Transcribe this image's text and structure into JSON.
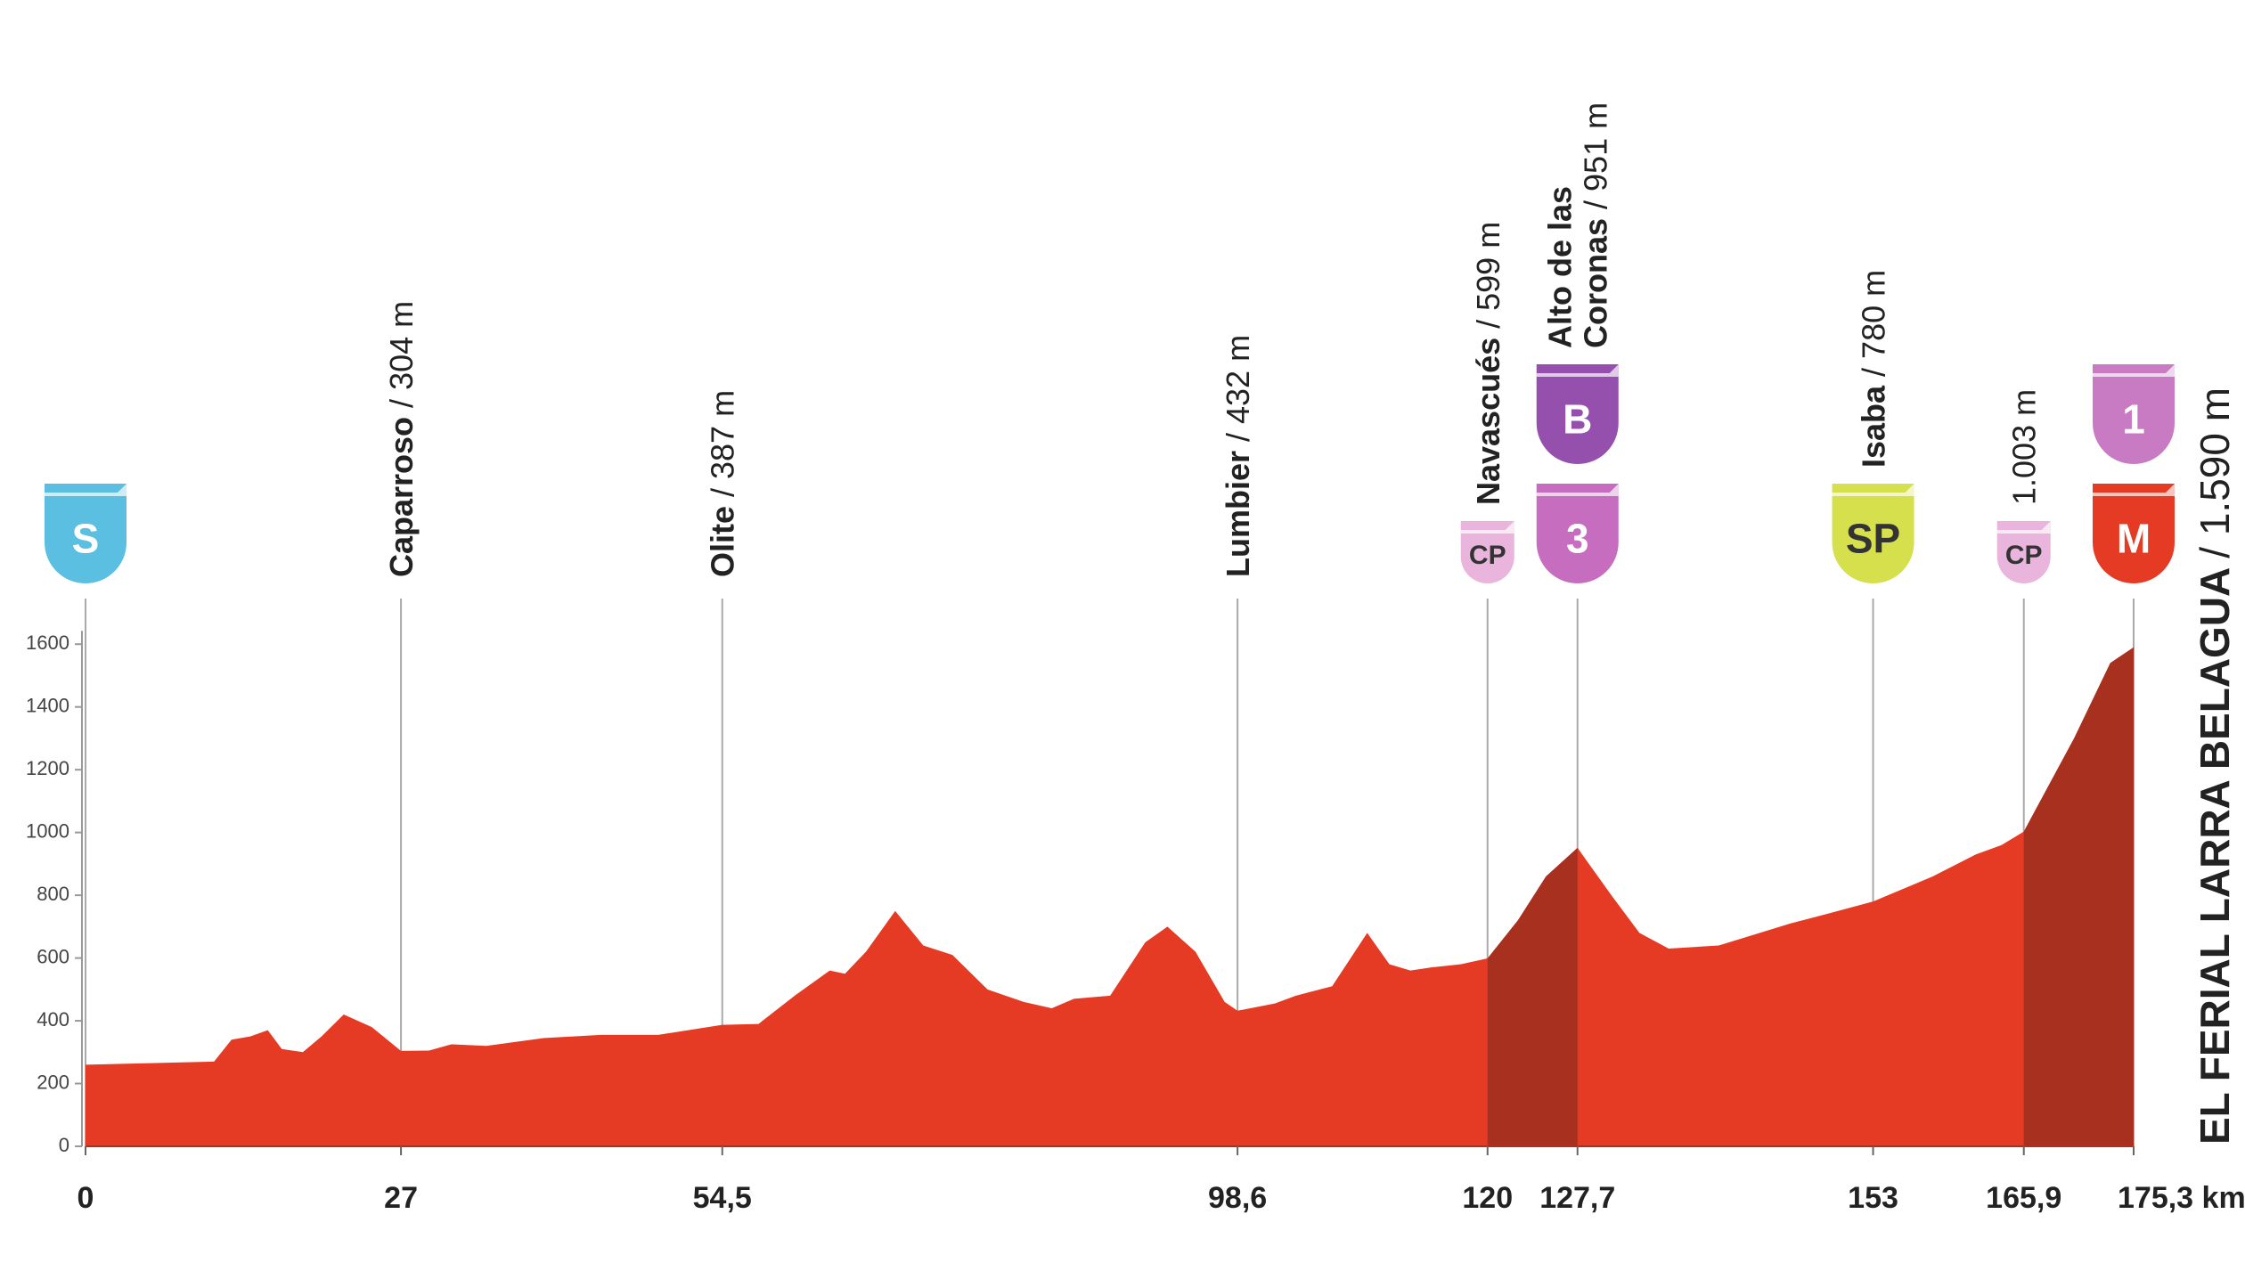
{
  "chart_data": {
    "type": "area",
    "x": [
      0,
      11.0,
      12.5,
      14.1,
      15.6,
      16.8,
      18.6,
      20.2,
      22.1,
      24.5,
      27,
      29.4,
      31.3,
      34.3,
      39.2,
      44.1,
      49.0,
      54.5,
      57.6,
      60.7,
      63.7,
      65.0,
      66.8,
      69.3,
      71.7,
      74.2,
      77.2,
      80.3,
      82.7,
      84.6,
      87.7,
      90.7,
      92.6,
      95.0,
      97.5,
      98.6,
      101.8,
      103.6,
      106.7,
      109.7,
      111.6,
      113.4,
      115.2,
      117.7,
      120,
      122.6,
      125,
      127.7,
      130.6,
      133,
      135.5,
      139.8,
      145.9,
      149,
      153,
      158.1,
      161.8,
      164,
      165.9,
      170.2,
      173.3,
      175.3
    ],
    "values": [
      260,
      270,
      340,
      350,
      370,
      310,
      300,
      350,
      420,
      380,
      304,
      305,
      325,
      320,
      345,
      355,
      355,
      387,
      390,
      480,
      560,
      550,
      620,
      750,
      640,
      610,
      500,
      460,
      440,
      470,
      480,
      650,
      700,
      620,
      460,
      432,
      455,
      480,
      510,
      680,
      580,
      560,
      570,
      580,
      599,
      720,
      860,
      951,
      800,
      680,
      630,
      640,
      710,
      740,
      780,
      860,
      930,
      960,
      1003,
      1300,
      1540,
      1590
    ],
    "color": "#e53a23",
    "climb_color": "#a8301f",
    "climbs": [
      [
        120,
        127.7
      ],
      [
        165.9,
        175.3
      ]
    ],
    "xlim": [
      0,
      175.3
    ],
    "ylim": [
      0,
      1700
    ],
    "xticks": [
      0,
      27,
      {
        "value": 54.5,
        "label": "54,5"
      },
      {
        "value": 98.6,
        "label": "98,6"
      },
      120,
      {
        "value": 127.7,
        "label": "127,7"
      },
      153,
      {
        "value": 165.9,
        "label": "165,9"
      },
      {
        "value": 175.3,
        "label": "175,3 km"
      }
    ],
    "yticks": [
      0,
      200,
      400,
      600,
      800,
      1000,
      1200,
      1400,
      1600
    ],
    "waypoints": [
      {
        "x": 0,
        "badges": [
          {
            "text": "S",
            "color": "#5bbfe2",
            "text_color": "#ffffff",
            "size": "large"
          }
        ]
      },
      {
        "x": 27,
        "name": "Caparroso",
        "altitude": "/ 304 m"
      },
      {
        "x": 54.5,
        "name": "Olite",
        "altitude": "/ 387 m"
      },
      {
        "x": 98.6,
        "name": "Lumbier",
        "altitude": "/ 432 m"
      },
      {
        "x": 120,
        "name": "Navascués",
        "altitude": "/ 599 m",
        "badges": [
          {
            "text": "CP",
            "color": "#e9b5dc",
            "text_color": "#333333",
            "size": "small"
          }
        ]
      },
      {
        "x": 127.7,
        "name": "Alto de las",
        "name2": "Coronas",
        "altitude": "/ 951 m",
        "badges": [
          {
            "text": "3",
            "color": "#c66dc0",
            "text_color": "#ffffff",
            "size": "large"
          },
          {
            "text": "B",
            "color": "#9550ae",
            "text_color": "#ffffff",
            "size": "large"
          }
        ]
      },
      {
        "x": 153,
        "name": "Isaba",
        "altitude": "/ 780 m",
        "badges": [
          {
            "text": "SP",
            "color": "#d5e04c",
            "text_color": "#333333",
            "size": "large"
          }
        ]
      },
      {
        "x": 165.9,
        "altitude": "1.003 m",
        "badges": [
          {
            "text": "CP",
            "color": "#e9b5dc",
            "text_color": "#333333",
            "size": "small"
          }
        ]
      },
      {
        "x": 175.3,
        "badges": [
          {
            "text": "M",
            "color": "#e53a23",
            "text_color": "#ffffff",
            "size": "large"
          },
          {
            "text": "1",
            "color": "#c87bc3",
            "text_color": "#ffffff",
            "size": "large"
          }
        ]
      }
    ],
    "finish": {
      "name": "EL FERIAL LARRA BELAGUA",
      "altitude": "/ 1.590 m"
    }
  }
}
